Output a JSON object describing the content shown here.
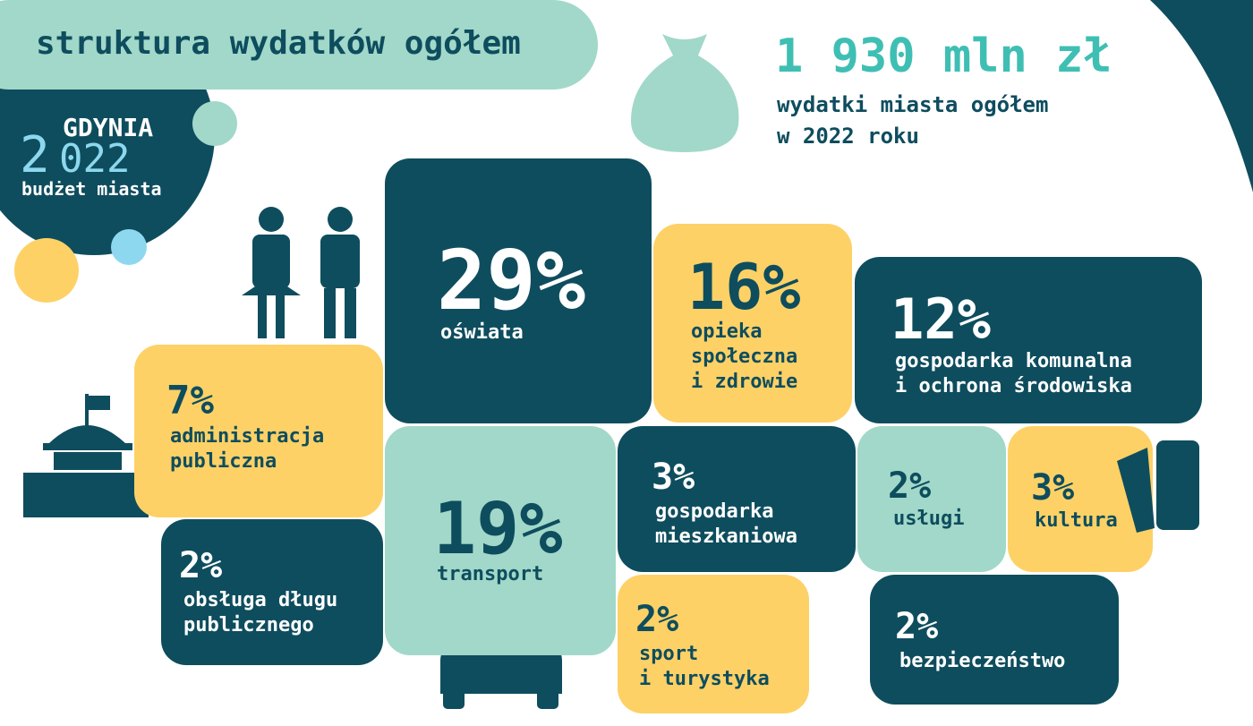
{
  "header": {
    "title": "struktura wydatków ogółem",
    "city": "GDYNIA",
    "year_first": "2",
    "year_rest": "022",
    "subtitle": "budżet miasta"
  },
  "total": {
    "amount": "1 930 mln zł",
    "lines": [
      "wydatki miasta ogółem",
      "w 2022 roku"
    ]
  },
  "tiles": [
    {
      "percent": "29%",
      "lines": [
        "oświata"
      ]
    },
    {
      "percent": "16%",
      "lines": [
        "opieka",
        "społeczna",
        "i zdrowie"
      ]
    },
    {
      "percent": "12%",
      "lines": [
        "gospodarka komunalna",
        "i ochrona środowiska"
      ]
    },
    {
      "percent": "7%",
      "lines": [
        "administracja",
        "publiczna"
      ]
    },
    {
      "percent": "19%",
      "lines": [
        "transport"
      ]
    },
    {
      "percent": "3%",
      "lines": [
        "gospodarka",
        "mieszkaniowa"
      ]
    },
    {
      "percent": "2%",
      "lines": [
        "usługi"
      ]
    },
    {
      "percent": "3%",
      "lines": [
        "kultura"
      ]
    },
    {
      "percent": "2%",
      "lines": [
        "obsługa długu",
        "publicznego"
      ]
    },
    {
      "percent": "2%",
      "lines": [
        "sport",
        "i turystyka"
      ]
    },
    {
      "percent": "2%",
      "lines": [
        "bezpieczeństwo"
      ]
    }
  ]
}
